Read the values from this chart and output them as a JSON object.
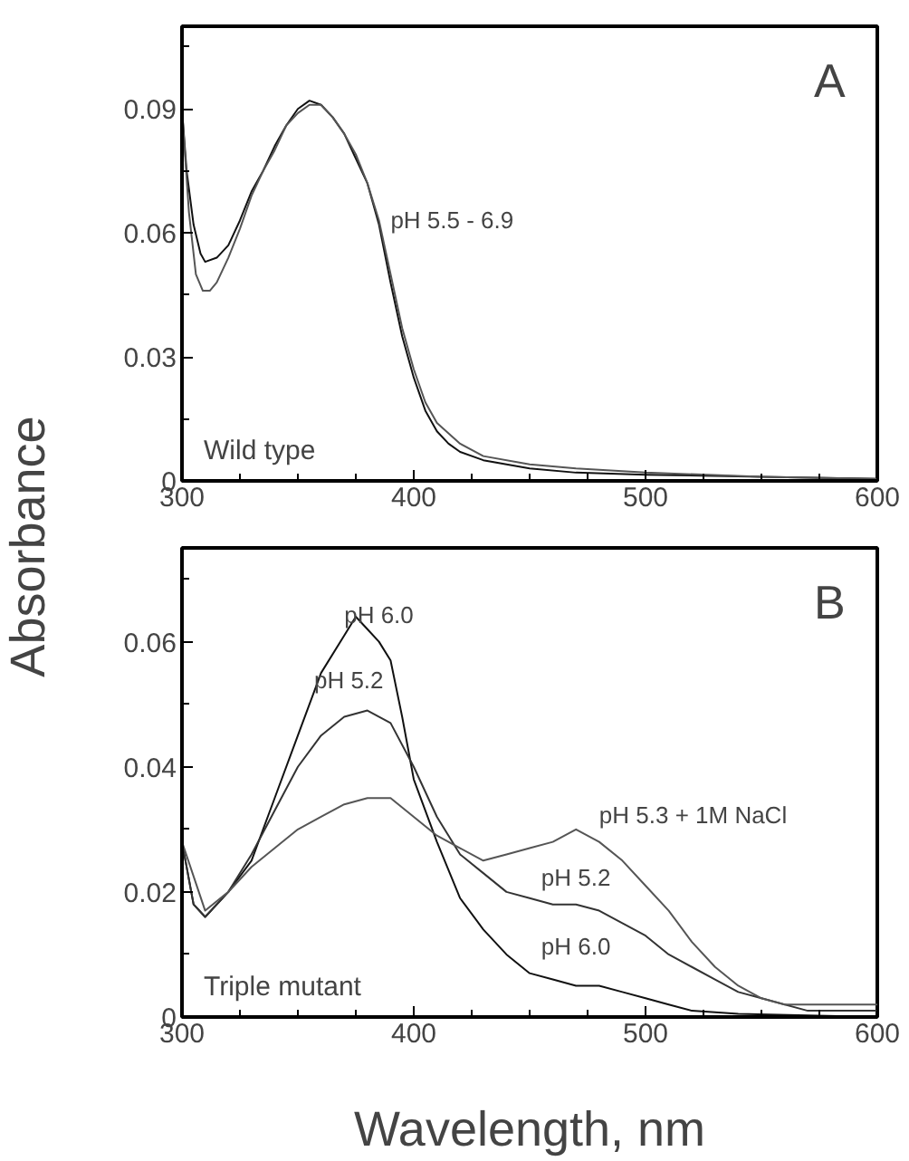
{
  "chart_data": [
    {
      "type": "line",
      "title": "A",
      "ylabel": "Absorbance",
      "xlim": [
        300,
        600
      ],
      "ylim": [
        0,
        0.11
      ],
      "xticks": [
        300,
        {
          "value": 325,
          "label": null
        },
        {
          "value": 350,
          "label": null
        },
        {
          "value": 375,
          "label": null
        },
        400,
        {
          "value": 425,
          "label": null
        },
        {
          "value": 450,
          "label": null
        },
        {
          "value": 475,
          "label": null
        },
        500,
        {
          "value": 525,
          "label": null
        },
        {
          "value": 550,
          "label": null
        },
        {
          "value": 575,
          "label": null
        },
        600
      ],
      "yticks": [
        0,
        {
          "value": 0.015,
          "label": null
        },
        0.03,
        {
          "value": 0.045,
          "label": null
        },
        0.06,
        {
          "value": 0.075,
          "label": null
        },
        0.09,
        {
          "value": 0.105,
          "label": null
        }
      ],
      "annotations": [
        {
          "text": "pH 5.5 - 6.9",
          "x": 390,
          "y": 0.058
        },
        "Wild type"
      ],
      "series": [
        {
          "color": "#111111",
          "x": [
            300,
            302,
            305,
            308,
            310,
            315,
            320,
            325,
            330,
            335,
            340,
            345,
            350,
            355,
            360,
            365,
            370,
            375,
            380,
            385,
            390,
            395,
            400,
            405,
            410,
            415,
            420,
            430,
            440,
            450,
            470,
            500,
            550,
            600
          ],
          "values": [
            0.09,
            0.075,
            0.062,
            0.055,
            0.053,
            0.054,
            0.057,
            0.063,
            0.07,
            0.075,
            0.081,
            0.086,
            0.09,
            0.092,
            0.091,
            0.088,
            0.084,
            0.078,
            0.072,
            0.062,
            0.048,
            0.035,
            0.025,
            0.017,
            0.012,
            0.009,
            0.007,
            0.005,
            0.004,
            0.003,
            0.002,
            0.0015,
            0.001,
            0.0005
          ]
        },
        {
          "color": "#555555",
          "x": [
            300,
            303,
            306,
            309,
            312,
            315,
            320,
            325,
            330,
            335,
            340,
            345,
            350,
            355,
            360,
            365,
            370,
            375,
            380,
            385,
            390,
            395,
            400,
            405,
            410,
            420,
            430,
            450,
            470,
            500,
            550,
            600
          ],
          "values": [
            0.09,
            0.065,
            0.05,
            0.046,
            0.046,
            0.048,
            0.054,
            0.061,
            0.069,
            0.075,
            0.08,
            0.086,
            0.089,
            0.091,
            0.091,
            0.088,
            0.084,
            0.079,
            0.072,
            0.063,
            0.05,
            0.037,
            0.027,
            0.019,
            0.014,
            0.009,
            0.006,
            0.004,
            0.003,
            0.002,
            0.001,
            0.0005
          ]
        }
      ]
    },
    {
      "type": "line",
      "title": "B",
      "xlabel": "Wavelength, nm",
      "xlim": [
        300,
        600
      ],
      "ylim": [
        0,
        0.075
      ],
      "xticks": [
        300,
        {
          "value": 325,
          "label": null
        },
        {
          "value": 350,
          "label": null
        },
        {
          "value": 375,
          "label": null
        },
        400,
        {
          "value": 425,
          "label": null
        },
        {
          "value": 450,
          "label": null
        },
        {
          "value": 475,
          "label": null
        },
        500,
        {
          "value": 525,
          "label": null
        },
        {
          "value": 550,
          "label": null
        },
        {
          "value": 575,
          "label": null
        },
        600
      ],
      "yticks": [
        0,
        {
          "value": 0.01,
          "label": null
        },
        0.02,
        {
          "value": 0.03,
          "label": null
        },
        0.04,
        {
          "value": 0.05,
          "label": null
        },
        0.06,
        {
          "value": 0.07,
          "label": null
        }
      ],
      "annotations": [
        {
          "text": "pH 6.0",
          "x": 370,
          "y": 0.061
        },
        {
          "text": "pH 5.2",
          "x": 357,
          "y": 0.0505
        },
        {
          "text": "pH 5.3 + 1M NaCl",
          "x": 480,
          "y": 0.029
        },
        {
          "text": "pH 5.2",
          "x": 455,
          "y": 0.019
        },
        {
          "text": "pH 6.0",
          "x": 455,
          "y": 0.008
        },
        "Triple mutant"
      ],
      "series": [
        {
          "color": "#111111",
          "x": [
            300,
            305,
            310,
            320,
            330,
            340,
            350,
            360,
            370,
            375,
            380,
            385,
            390,
            395,
            400,
            410,
            420,
            430,
            440,
            450,
            460,
            470,
            480,
            490,
            500,
            510,
            520,
            540,
            600
          ],
          "values": [
            0.028,
            0.018,
            0.016,
            0.02,
            0.025,
            0.035,
            0.045,
            0.055,
            0.061,
            0.064,
            0.062,
            0.06,
            0.057,
            0.048,
            0.038,
            0.028,
            0.019,
            0.014,
            0.01,
            0.007,
            0.006,
            0.005,
            0.005,
            0.004,
            0.003,
            0.002,
            0.001,
            0.0005,
            0.0
          ]
        },
        {
          "color": "#333333",
          "x": [
            300,
            305,
            310,
            320,
            330,
            340,
            350,
            360,
            370,
            380,
            390,
            400,
            410,
            420,
            430,
            440,
            450,
            460,
            470,
            480,
            490,
            500,
            510,
            520,
            530,
            540,
            550,
            570,
            600
          ],
          "values": [
            0.028,
            0.018,
            0.016,
            0.02,
            0.026,
            0.033,
            0.04,
            0.045,
            0.048,
            0.049,
            0.047,
            0.04,
            0.032,
            0.026,
            0.023,
            0.02,
            0.019,
            0.018,
            0.018,
            0.017,
            0.015,
            0.013,
            0.01,
            0.008,
            0.006,
            0.004,
            0.003,
            0.001,
            0.001
          ]
        },
        {
          "color": "#555555",
          "x": [
            300,
            310,
            320,
            330,
            340,
            350,
            360,
            370,
            380,
            390,
            400,
            410,
            420,
            430,
            440,
            450,
            460,
            470,
            480,
            490,
            500,
            510,
            520,
            530,
            540,
            550,
            560,
            580,
            600
          ],
          "values": [
            0.028,
            0.017,
            0.02,
            0.024,
            0.027,
            0.03,
            0.032,
            0.034,
            0.035,
            0.035,
            0.032,
            0.029,
            0.027,
            0.025,
            0.026,
            0.027,
            0.028,
            0.03,
            0.028,
            0.025,
            0.021,
            0.017,
            0.012,
            0.008,
            0.005,
            0.003,
            0.002,
            0.002,
            0.002
          ]
        }
      ]
    }
  ]
}
